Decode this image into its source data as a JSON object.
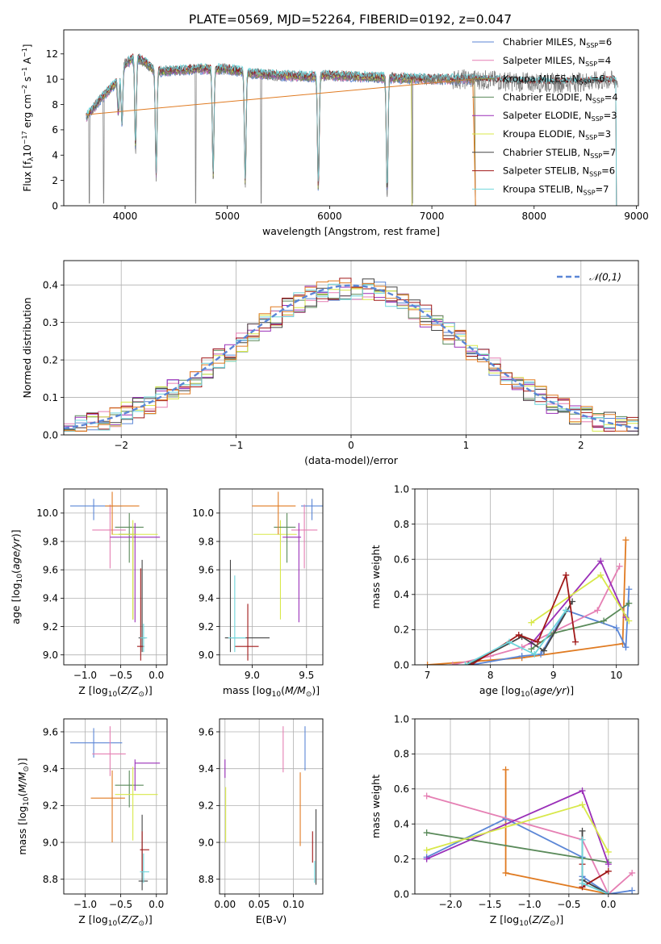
{
  "figure_title": "PLATE=0569, MJD=52264, FIBERID=0192, z=0.047",
  "colors": {
    "Chabrier MILES": "#5b86d6",
    "Salpeter MILES": "#e57fb3",
    "Kroupa MILES": "#8b8b3a",
    "Chabrier ELODIE": "#5a8a5a",
    "Salpeter ELODIE": "#9a2fb8",
    "Kroupa ELODIE": "#d8e84a",
    "Chabrier STELIB": "#444444",
    "Salpeter STELIB": "#a01818",
    "Kroupa STELIB": "#6fd6dc",
    "data": "#808080",
    "orange": "#e07b22"
  },
  "chart_data": [
    {
      "id": "spectrum",
      "type": "line",
      "xlabel": "wavelength [Angstrom, rest frame]",
      "ylabel": "Flux [f",
      "xlim": [
        3400,
        9020
      ],
      "ylim": [
        0,
        13.9
      ],
      "xticks": [
        4000,
        5000,
        6000,
        7000,
        8000,
        9000
      ],
      "yticks": [
        0,
        2,
        4,
        6,
        8,
        10,
        12
      ],
      "legend": "top-right",
      "legend_entries": [
        {
          "base": "Chabrier MILES, N",
          "sub": "SSP",
          "val": "=6"
        },
        {
          "base": "Salpeter MILES, N",
          "sub": "SSP",
          "val": "=4"
        },
        {
          "base": "Kroupa MILES, N",
          "sub": "SSP",
          "val": "=6"
        },
        {
          "base": "Chabrier ELODIE, N",
          "sub": "SSP",
          "val": "=4"
        },
        {
          "base": "Salpeter ELODIE, N",
          "sub": "SSP",
          "val": "=3"
        },
        {
          "base": "Kroupa ELODIE, N",
          "sub": "SSP",
          "val": "=3"
        },
        {
          "base": "Chabrier STELIB, N",
          "sub": "SSP",
          "val": "=7"
        },
        {
          "base": "Salpeter STELIB, N",
          "sub": "SSP",
          "val": "=6"
        },
        {
          "base": "Kroupa STELIB, N",
          "sub": "SSP",
          "val": "=7"
        }
      ],
      "continuum": [
        [
          3620,
          7.0
        ],
        [
          3700,
          7.8
        ],
        [
          3800,
          8.8
        ],
        [
          3900,
          9.6
        ],
        [
          4000,
          11.2
        ],
        [
          4100,
          11.8
        ],
        [
          4200,
          11.3
        ],
        [
          4300,
          10.6
        ],
        [
          4500,
          10.7
        ],
        [
          4700,
          10.8
        ],
        [
          5000,
          10.8
        ],
        [
          5200,
          10.5
        ],
        [
          5500,
          10.3
        ],
        [
          5800,
          10.2
        ],
        [
          6000,
          10.3
        ],
        [
          6300,
          10.2
        ],
        [
          6600,
          10.1
        ],
        [
          7000,
          10.0
        ],
        [
          7400,
          10.0
        ],
        [
          7800,
          9.8
        ],
        [
          8200,
          9.7
        ],
        [
          8800,
          9.9
        ]
      ],
      "absorption": [
        [
          3934,
          3.0
        ],
        [
          3969,
          4.5
        ],
        [
          4102,
          7.5
        ],
        [
          4304,
          8.6
        ],
        [
          4861,
          8.8
        ],
        [
          5175,
          9.1
        ],
        [
          5890,
          9.4
        ],
        [
          6563,
          9.6
        ]
      ],
      "spikes": [
        3650,
        3790,
        4690,
        5330,
        6810
      ]
    },
    {
      "id": "residual_hist",
      "type": "histogram",
      "xlabel": "(data-model)/error",
      "ylabel": "Normed distribution",
      "xlim": [
        -2.5,
        2.5
      ],
      "ylim": [
        0,
        0.465
      ],
      "xticks": [
        -2,
        -1,
        0,
        1,
        2
      ],
      "yticks": [
        0.0,
        0.1,
        0.2,
        0.3,
        0.4
      ],
      "bin_width": 0.1,
      "reference_curve": "𝒩(0,1)",
      "legend": "top-right"
    },
    {
      "id": "age_vs_Z",
      "type": "scatter",
      "xlabel": "Z [log",
      "ylabel": "age  [log",
      "xlim": [
        -1.3,
        0.15
      ],
      "ylim": [
        8.93,
        10.17
      ],
      "xticks": [
        -1.0,
        -0.5,
        0.0
      ],
      "yticks": [
        9.0,
        9.2,
        9.4,
        9.6,
        9.8,
        10.0
      ],
      "points": [
        {
          "model": "Chabrier MILES",
          "x": -0.88,
          "y": 10.05,
          "xerr": [
            0.33,
            0.4
          ],
          "yerr": [
            0.1,
            0.05
          ]
        },
        {
          "model": "Salpeter MILES",
          "x": -0.65,
          "y": 9.88,
          "xerr": [
            0.25,
            0.22
          ],
          "yerr": [
            0.27,
            0.18
          ]
        },
        {
          "model": "Kroupa MILES",
          "x": -0.33,
          "y": 9.85,
          "xerr": [
            0.2,
            0.05
          ],
          "yerr": [
            0.6,
            0.05
          ]
        },
        {
          "model": "Chabrier ELODIE",
          "x": -0.38,
          "y": 9.9,
          "xerr": [
            0.2,
            0.2
          ],
          "yerr": [
            0.25,
            0.1
          ]
        },
        {
          "model": "Salpeter ELODIE",
          "x": -0.3,
          "y": 9.83,
          "xerr": [
            0.35,
            0.35
          ],
          "yerr": [
            0.6,
            0.1
          ]
        },
        {
          "model": "Kroupa ELODIE",
          "x": -0.33,
          "y": 9.85,
          "xerr": [
            0.3,
            0.35
          ],
          "yerr": [
            0.6,
            0.1
          ]
        },
        {
          "model": "Chabrier STELIB",
          "x": -0.2,
          "y": 9.12,
          "xerr": [
            0.05,
            0.05
          ],
          "yerr": [
            0.1,
            0.55
          ]
        },
        {
          "model": "Salpeter STELIB",
          "x": -0.22,
          "y": 9.06,
          "xerr": [
            0.05,
            0.05
          ],
          "yerr": [
            0.1,
            0.55
          ]
        },
        {
          "model": "Kroupa STELIB",
          "x": -0.18,
          "y": 9.12,
          "xerr": [
            0.05,
            0.05
          ],
          "yerr": [
            0.1,
            0.1
          ]
        },
        {
          "model": "orange",
          "x": -0.62,
          "y": 10.05,
          "xerr": [
            0.1,
            0.38
          ],
          "yerr": [
            0.2,
            0.1
          ]
        }
      ]
    },
    {
      "id": "age_vs_mass",
      "type": "scatter",
      "xlabel": "mass [log",
      "ylabel": "",
      "xlim": [
        8.7,
        9.65
      ],
      "ylim": [
        8.93,
        10.17
      ],
      "xticks": [
        9.0,
        9.5
      ],
      "yticks": [
        9.0,
        9.2,
        9.4,
        9.6,
        9.8,
        10.0
      ],
      "points": [
        {
          "model": "Chabrier MILES",
          "x": 9.55,
          "y": 10.05,
          "xerr": [
            0.1,
            0.1
          ],
          "yerr": [
            0.1,
            0.05
          ]
        },
        {
          "model": "Salpeter MILES",
          "x": 9.48,
          "y": 9.88,
          "xerr": [
            0.12,
            0.12
          ],
          "yerr": [
            0.27,
            0.18
          ]
        },
        {
          "model": "Kroupa ELODIE",
          "x": 9.26,
          "y": 9.85,
          "xerr": [
            0.25,
            0.15
          ],
          "yerr": [
            0.6,
            0.1
          ]
        },
        {
          "model": "Chabrier ELODIE",
          "x": 9.32,
          "y": 9.9,
          "xerr": [
            0.12,
            0.08
          ],
          "yerr": [
            0.25,
            0.1
          ]
        },
        {
          "model": "Salpeter ELODIE",
          "x": 9.43,
          "y": 9.83,
          "xerr": [
            0.15,
            0.02
          ],
          "yerr": [
            0.6,
            0.1
          ]
        },
        {
          "model": "Chabrier STELIB",
          "x": 8.8,
          "y": 9.12,
          "xerr": [
            0.05,
            0.36
          ],
          "yerr": [
            0.1,
            0.55
          ]
        },
        {
          "model": "Salpeter STELIB",
          "x": 8.96,
          "y": 9.06,
          "xerr": [
            0.12,
            0.1
          ],
          "yerr": [
            0.1,
            0.3
          ]
        },
        {
          "model": "Kroupa STELIB",
          "x": 8.84,
          "y": 9.12,
          "xerr": [
            0.06,
            0.1
          ],
          "yerr": [
            0.1,
            0.44
          ]
        },
        {
          "model": "orange",
          "x": 9.24,
          "y": 10.05,
          "xerr": [
            0.24,
            0.16
          ],
          "yerr": [
            0.2,
            0.1
          ]
        }
      ]
    },
    {
      "id": "weight_vs_age",
      "type": "line",
      "xlabel": "age  [log",
      "ylabel": "mass weight",
      "xlim": [
        6.8,
        10.35
      ],
      "ylim": [
        0,
        1.0
      ],
      "xticks": [
        7,
        8,
        9,
        10
      ],
      "yticks": [
        0.0,
        0.2,
        0.4,
        0.6,
        0.8,
        1.0
      ],
      "series": [
        {
          "model": "orange",
          "x": [
            7.0,
            8.5,
            10.1,
            10.15
          ],
          "y": [
            0.0,
            0.04,
            0.12,
            0.71
          ]
        },
        {
          "model": "Chabrier MILES",
          "x": [
            7.7,
            8.5,
            8.8,
            9.2,
            10.0,
            10.15,
            10.2
          ],
          "y": [
            0.0,
            0.05,
            0.06,
            0.31,
            0.21,
            0.1,
            0.43
          ]
        },
        {
          "model": "Salpeter MILES",
          "x": [
            7.4,
            8.0,
            8.5,
            9.7,
            10.05
          ],
          "y": [
            0.0,
            0.05,
            0.1,
            0.31,
            0.56
          ]
        },
        {
          "model": "Chabrier ELODIE",
          "x": [
            8.65,
            9.0,
            9.8,
            10.2
          ],
          "y": [
            0.09,
            0.18,
            0.25,
            0.35
          ]
        },
        {
          "model": "Salpeter ELODIE",
          "x": [
            8.65,
            9.75,
            10.15
          ],
          "y": [
            0.12,
            0.59,
            0.27
          ]
        },
        {
          "model": "Kroupa ELODIE",
          "x": [
            8.65,
            9.75,
            10.2
          ],
          "y": [
            0.24,
            0.51,
            0.25
          ]
        },
        {
          "model": "Chabrier STELIB",
          "x": [
            7.65,
            8.5,
            8.85,
            9.3
          ],
          "y": [
            0.0,
            0.16,
            0.08,
            0.36
          ]
        },
        {
          "model": "Salpeter STELIB",
          "x": [
            7.7,
            8.45,
            8.75,
            9.2,
            9.35
          ],
          "y": [
            0.0,
            0.17,
            0.13,
            0.51,
            0.13
          ]
        },
        {
          "model": "Kroupa STELIB",
          "x": [
            7.6,
            8.3,
            8.7,
            9.2
          ],
          "y": [
            0.0,
            0.13,
            0.06,
            0.31
          ]
        }
      ]
    },
    {
      "id": "mass_vs_Z",
      "type": "scatter",
      "xlabel": "Z [log",
      "ylabel": "mass [log",
      "xlim": [
        -1.3,
        0.15
      ],
      "ylim": [
        8.72,
        9.67
      ],
      "xticks": [
        -1.0,
        -0.5,
        0.0
      ],
      "yticks": [
        8.8,
        9.0,
        9.2,
        9.4,
        9.6
      ],
      "points": [
        {
          "model": "Chabrier MILES",
          "x": -0.88,
          "y": 9.54,
          "xerr": [
            0.33,
            0.4
          ],
          "yerr": [
            0.08,
            0.08
          ]
        },
        {
          "model": "Salpeter MILES",
          "x": -0.65,
          "y": 9.48,
          "xerr": [
            0.25,
            0.22
          ],
          "yerr": [
            0.12,
            0.15
          ]
        },
        {
          "model": "Chabrier ELODIE",
          "x": -0.38,
          "y": 9.31,
          "xerr": [
            0.2,
            0.2
          ],
          "yerr": [
            0.12,
            0.08
          ]
        },
        {
          "model": "Salpeter ELODIE",
          "x": -0.3,
          "y": 9.43,
          "xerr": [
            0.0,
            0.35
          ],
          "yerr": [
            0.15,
            0.02
          ]
        },
        {
          "model": "Kroupa ELODIE",
          "x": -0.33,
          "y": 9.26,
          "xerr": [
            0.25,
            0.35
          ],
          "yerr": [
            0.25,
            0.15
          ]
        },
        {
          "model": "Chabrier STELIB",
          "x": -0.2,
          "y": 8.79,
          "xerr": [
            0.05,
            0.08
          ],
          "yerr": [
            0.05,
            0.36
          ]
        },
        {
          "model": "Salpeter STELIB",
          "x": -0.2,
          "y": 8.96,
          "xerr": [
            0.03,
            0.1
          ],
          "yerr": [
            0.12,
            0.1
          ]
        },
        {
          "model": "Kroupa STELIB",
          "x": -0.18,
          "y": 8.84,
          "xerr": [
            0.05,
            0.08
          ],
          "yerr": [
            0.06,
            0.1
          ]
        },
        {
          "model": "orange",
          "x": -0.62,
          "y": 9.24,
          "xerr": [
            0.3,
            0.18
          ],
          "yerr": [
            0.24,
            0.15
          ]
        }
      ]
    },
    {
      "id": "mass_vs_EBV",
      "type": "scatter",
      "xlabel": "E(B-V)",
      "ylabel": "",
      "xlim": [
        -0.008,
        0.143
      ],
      "ylim": [
        8.72,
        9.67
      ],
      "xticks": [
        0.0,
        0.05,
        0.1
      ],
      "yticks": [
        8.8,
        9.0,
        9.2,
        9.4,
        9.6
      ],
      "points": [
        {
          "model": "Chabrier MILES",
          "x": 0.117,
          "y": 9.51,
          "yerr": [
            0.12,
            0.12
          ]
        },
        {
          "model": "Salpeter MILES",
          "x": 0.085,
          "y": 9.5,
          "yerr": [
            0.12,
            0.13
          ]
        },
        {
          "model": "Salpeter ELODIE",
          "x": 0.0,
          "y": 9.4,
          "yerr": [
            0.05,
            0.05
          ]
        },
        {
          "model": "Kroupa ELODIE",
          "x": 0.001,
          "y": 9.2,
          "yerr": [
            0.2,
            0.1
          ]
        },
        {
          "model": "Chabrier STELIB",
          "x": 0.133,
          "y": 9.0,
          "yerr": [
            0.23,
            0.18
          ]
        },
        {
          "model": "Salpeter STELIB",
          "x": 0.128,
          "y": 8.96,
          "yerr": [
            0.07,
            0.1
          ]
        },
        {
          "model": "Kroupa STELIB",
          "x": 0.131,
          "y": 8.84,
          "yerr": [
            0.06,
            0.06
          ]
        },
        {
          "model": "orange",
          "x": 0.11,
          "y": 9.12,
          "yerr": [
            0.14,
            0.26
          ]
        }
      ]
    },
    {
      "id": "weight_vs_Z",
      "type": "line",
      "xlabel": "Z [log",
      "ylabel": "mass weight",
      "xlim": [
        -2.45,
        0.38
      ],
      "ylim": [
        0,
        1.0
      ],
      "xticks": [
        -2.0,
        -1.5,
        -1.0,
        -0.5,
        0.0
      ],
      "yticks": [
        0.0,
        0.2,
        0.4,
        0.6,
        0.8,
        1.0
      ],
      "series": [
        {
          "model": "orange",
          "x": [
            -1.3,
            -1.3,
            0.0,
            0.0
          ],
          "y": [
            0.71,
            0.12,
            0.0,
            0.0
          ]
        },
        {
          "model": "Chabrier MILES",
          "x": [
            -2.3,
            -1.3,
            -0.33,
            -0.33,
            0.0,
            0.3
          ],
          "y": [
            0.21,
            0.43,
            0.21,
            0.1,
            0.0,
            0.02
          ]
        },
        {
          "model": "Salpeter MILES",
          "x": [
            -2.3,
            -0.33,
            0.0,
            0.3
          ],
          "y": [
            0.56,
            0.31,
            0.0,
            0.12
          ]
        },
        {
          "model": "Chabrier ELODIE",
          "x": [
            -2.3,
            0.0
          ],
          "y": [
            0.35,
            0.18
          ]
        },
        {
          "model": "Salpeter ELODIE",
          "x": [
            -2.3,
            -0.33,
            0.0
          ],
          "y": [
            0.2,
            0.59,
            0.17
          ]
        },
        {
          "model": "Kroupa ELODIE",
          "x": [
            -2.3,
            -0.33,
            0.0
          ],
          "y": [
            0.25,
            0.51,
            0.24
          ]
        },
        {
          "model": "Chabrier STELIB",
          "x": [
            -0.33,
            -0.33,
            0.0
          ],
          "y": [
            0.36,
            0.08,
            0.0
          ]
        },
        {
          "model": "Salpeter STELIB",
          "x": [
            -0.33,
            -0.33,
            0.0
          ],
          "y": [
            0.17,
            0.04,
            0.13
          ]
        },
        {
          "model": "Kroupa STELIB",
          "x": [
            -0.33,
            -0.33,
            0.0
          ],
          "y": [
            0.31,
            0.06,
            0.0
          ]
        }
      ]
    }
  ]
}
